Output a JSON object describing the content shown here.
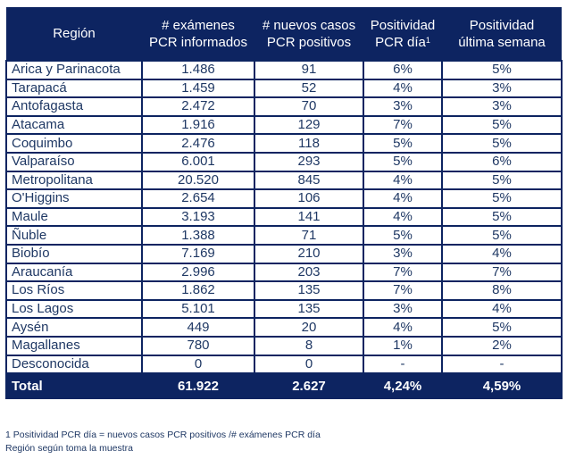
{
  "header": {
    "region": "Región",
    "exams": [
      "# exámenes",
      "PCR informados"
    ],
    "cases": [
      "# nuevos casos",
      "PCR positivos"
    ],
    "pos_day": [
      "Positividad",
      "PCR día"
    ],
    "pos_day_sup": "1",
    "pos_week": [
      "Positividad",
      "última semana"
    ]
  },
  "rows": [
    {
      "region": "Arica y Parinacota",
      "exams": "1.486",
      "cases": "91",
      "pos_day": "6%",
      "pos_week": "5%"
    },
    {
      "region": "Tarapacá",
      "exams": "1.459",
      "cases": "52",
      "pos_day": "4%",
      "pos_week": "3%"
    },
    {
      "region": "Antofagasta",
      "exams": "2.472",
      "cases": "70",
      "pos_day": "3%",
      "pos_week": "3%"
    },
    {
      "region": "Atacama",
      "exams": "1.916",
      "cases": "129",
      "pos_day": "7%",
      "pos_week": "5%"
    },
    {
      "region": "Coquimbo",
      "exams": "2.476",
      "cases": "118",
      "pos_day": "5%",
      "pos_week": "5%"
    },
    {
      "region": "Valparaíso",
      "exams": "6.001",
      "cases": "293",
      "pos_day": "5%",
      "pos_week": "6%"
    },
    {
      "region": "Metropolitana",
      "exams": "20.520",
      "cases": "845",
      "pos_day": "4%",
      "pos_week": "5%"
    },
    {
      "region": "O'Higgins",
      "exams": "2.654",
      "cases": "106",
      "pos_day": "4%",
      "pos_week": "5%"
    },
    {
      "region": "Maule",
      "exams": "3.193",
      "cases": "141",
      "pos_day": "4%",
      "pos_week": "5%"
    },
    {
      "region": "Ñuble",
      "exams": "1.388",
      "cases": "71",
      "pos_day": "5%",
      "pos_week": "5%"
    },
    {
      "region": "Biobío",
      "exams": "7.169",
      "cases": "210",
      "pos_day": "3%",
      "pos_week": "4%"
    },
    {
      "region": "Araucanía",
      "exams": "2.996",
      "cases": "203",
      "pos_day": "7%",
      "pos_week": "7%"
    },
    {
      "region": "Los Ríos",
      "exams": "1.862",
      "cases": "135",
      "pos_day": "7%",
      "pos_week": "8%"
    },
    {
      "region": "Los Lagos",
      "exams": "5.101",
      "cases": "135",
      "pos_day": "3%",
      "pos_week": "4%"
    },
    {
      "region": "Aysén",
      "exams": "449",
      "cases": "20",
      "pos_day": "4%",
      "pos_week": "5%"
    },
    {
      "region": "Magallanes",
      "exams": "780",
      "cases": "8",
      "pos_day": "1%",
      "pos_week": "2%"
    },
    {
      "region": "Desconocida",
      "exams": "0",
      "cases": "0",
      "pos_day": "-",
      "pos_week": "-"
    }
  ],
  "total": {
    "region": "Total",
    "exams": "61.922",
    "cases": "2.627",
    "pos_day": "4,24%",
    "pos_week": "4,59%"
  },
  "notes": [
    "1 Positividad PCR día = nuevos casos PCR positivos /# exámenes PCR día",
    "Región según toma la muestra"
  ],
  "colors": {
    "header_bg": "#0d2461",
    "text": "#1f3864"
  }
}
